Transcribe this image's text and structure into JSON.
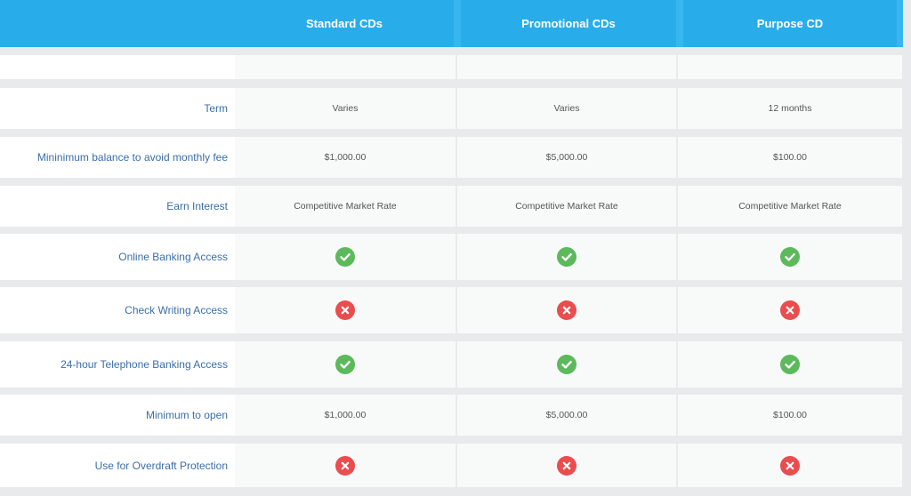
{
  "columns": [
    {
      "title": "Standard CDs"
    },
    {
      "title": "Promotional CDs"
    },
    {
      "title": "Purpose CD"
    }
  ],
  "rows": [
    {
      "label": "",
      "type": "empty"
    },
    {
      "label": "Term",
      "type": "text",
      "values": [
        "Varies",
        "Varies",
        "12 months"
      ]
    },
    {
      "label": "Mininimum balance to avoid monthly fee",
      "type": "text",
      "values": [
        "$1,000.00",
        "$5,000.00",
        "$100.00"
      ]
    },
    {
      "label": "Earn Interest",
      "type": "text",
      "values": [
        "Competitive Market Rate",
        "Competitive Market Rate",
        "Competitive Market Rate"
      ]
    },
    {
      "label": "Online Banking Access",
      "type": "icon",
      "values": [
        "check-icon",
        "check-icon",
        "check-icon"
      ]
    },
    {
      "label": "Check Writing Access",
      "type": "icon",
      "values": [
        "cross-icon",
        "cross-icon",
        "cross-icon"
      ]
    },
    {
      "label": "24-hour Telephone Banking Access",
      "type": "icon",
      "values": [
        "check-icon",
        "check-icon",
        "check-icon"
      ]
    },
    {
      "label": "Minimum to open",
      "type": "text",
      "values": [
        "$1,000.00",
        "$5,000.00",
        "$100.00"
      ]
    },
    {
      "label": "Use for Overdraft Protection",
      "type": "icon",
      "values": [
        "cross-icon",
        "cross-icon",
        "cross-icon"
      ]
    }
  ],
  "colors": {
    "header_bg": "#29adea",
    "label_text": "#3a6ea8",
    "check": "#5cb95c",
    "cross": "#ea4d4d"
  }
}
